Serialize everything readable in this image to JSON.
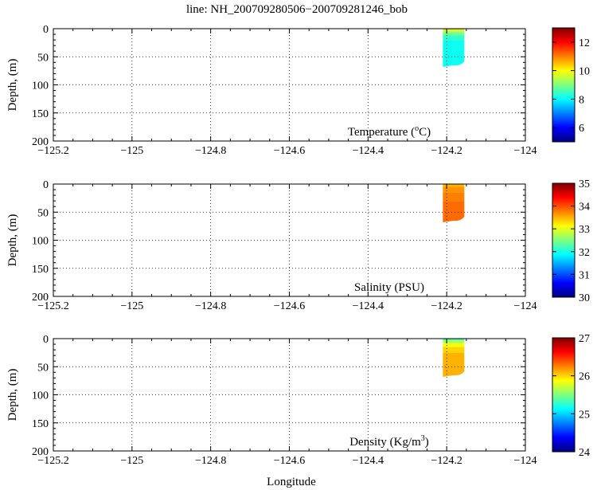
{
  "figure": {
    "title": "line: NH_200709280506−200709281246_bob",
    "xlabel": "Longitude"
  },
  "chart_data": [
    {
      "type": "heatmap",
      "panel_label": {
        "prefix": "Temperature (",
        "sup": "o",
        "suffix": "C)"
      },
      "ylabel": "Depth, (m)",
      "xlim": [
        -125.2,
        -124.0
      ],
      "ylim": [
        0,
        200
      ],
      "y_inverted": true,
      "x_ticks": [
        -125.2,
        -125,
        -124.8,
        -124.6,
        -124.4,
        -124.2,
        -124
      ],
      "x_tick_labels": [
        "−125.2",
        "−125",
        "−124.8",
        "−124.6",
        "−124.4",
        "−124.2",
        "−124"
      ],
      "y_ticks": [
        0,
        50,
        100,
        150,
        200
      ],
      "y_tick_labels": [
        "0",
        "50",
        "100",
        "150",
        "200"
      ],
      "grid": true,
      "colorbar": {
        "range": [
          5,
          13
        ],
        "ticks": [
          6,
          8,
          10,
          12
        ],
        "tick_labels": [
          "6",
          "8",
          "10",
          "12"
        ],
        "colormap": "jet"
      },
      "section": {
        "lon_start": -124.21,
        "lon_end": -124.155,
        "bottom_depth_start": 68,
        "bottom_depth_end": 58,
        "layers": [
          {
            "depth_top": 0,
            "depth_bottom": 2,
            "value": 10.3
          },
          {
            "depth_top": 2,
            "depth_bottom": 6,
            "value": 9.5
          },
          {
            "depth_top": 6,
            "depth_bottom": 12,
            "value": 8.9
          },
          {
            "depth_top": 12,
            "depth_bottom": 20,
            "value": 8.4
          },
          {
            "depth_top": 20,
            "depth_bottom": 200,
            "value": 8.1
          }
        ]
      }
    },
    {
      "type": "heatmap",
      "panel_label": {
        "prefix": "Salinity (PSU)",
        "sup": "",
        "suffix": ""
      },
      "ylabel": "Depth, (m)",
      "xlim": [
        -125.2,
        -124.0
      ],
      "ylim": [
        0,
        200
      ],
      "y_inverted": true,
      "x_ticks": [
        -125.2,
        -125,
        -124.8,
        -124.6,
        -124.4,
        -124.2,
        -124
      ],
      "x_tick_labels": [
        "−125.2",
        "−125",
        "−124.8",
        "−124.6",
        "−124.4",
        "−124.2",
        "−124"
      ],
      "y_ticks": [
        0,
        50,
        100,
        150,
        200
      ],
      "y_tick_labels": [
        "0",
        "50",
        "100",
        "150",
        "200"
      ],
      "grid": true,
      "colorbar": {
        "range": [
          30,
          35
        ],
        "ticks": [
          30,
          31,
          32,
          33,
          34,
          35
        ],
        "tick_labels": [
          "30",
          "31",
          "32",
          "33",
          "34",
          "35"
        ],
        "colormap": "jet"
      },
      "section": {
        "lon_start": -124.21,
        "lon_end": -124.155,
        "bottom_depth_start": 68,
        "bottom_depth_end": 58,
        "layers": [
          {
            "depth_top": 0,
            "depth_bottom": 5,
            "value": 33.5
          },
          {
            "depth_top": 5,
            "depth_bottom": 15,
            "value": 33.65
          },
          {
            "depth_top": 15,
            "depth_bottom": 30,
            "value": 33.75
          },
          {
            "depth_top": 30,
            "depth_bottom": 200,
            "value": 33.85
          }
        ]
      }
    },
    {
      "type": "heatmap",
      "panel_label": {
        "prefix": "Density (Kg/m",
        "sup": "3",
        "suffix": ")"
      },
      "ylabel": "Depth, (m)",
      "xlim": [
        -125.2,
        -124.0
      ],
      "ylim": [
        0,
        200
      ],
      "y_inverted": true,
      "x_ticks": [
        -125.2,
        -125,
        -124.8,
        -124.6,
        -124.4,
        -124.2,
        -124
      ],
      "x_tick_labels": [
        "−125.2",
        "−125",
        "−124.8",
        "−124.6",
        "−124.4",
        "−124.2",
        "−124"
      ],
      "y_ticks": [
        0,
        50,
        100,
        150,
        200
      ],
      "y_tick_labels": [
        "0",
        "50",
        "100",
        "150",
        "200"
      ],
      "grid": true,
      "colorbar": {
        "range": [
          24,
          27
        ],
        "ticks": [
          24,
          25,
          26,
          27
        ],
        "tick_labels": [
          "24",
          "25",
          "26",
          "27"
        ],
        "colormap": "jet"
      },
      "section": {
        "lon_start": -124.21,
        "lon_end": -124.155,
        "bottom_depth_start": 68,
        "bottom_depth_end": 58,
        "layers": [
          {
            "depth_top": 0,
            "depth_bottom": 3,
            "value": 25.35
          },
          {
            "depth_top": 3,
            "depth_bottom": 8,
            "value": 25.6
          },
          {
            "depth_top": 8,
            "depth_bottom": 15,
            "value": 25.85
          },
          {
            "depth_top": 15,
            "depth_bottom": 25,
            "value": 26.0
          },
          {
            "depth_top": 25,
            "depth_bottom": 200,
            "value": 26.1
          }
        ]
      }
    }
  ]
}
